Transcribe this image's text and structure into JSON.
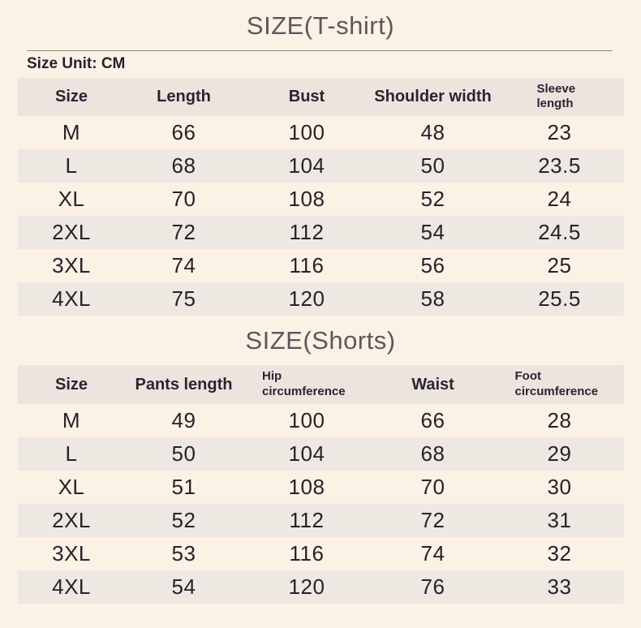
{
  "theme": {
    "background": "#fcf1e5",
    "stripe_row": "#ede8e1",
    "header_row": "#ece5dd",
    "title_color": "#5b585c",
    "text_color": "#272229",
    "rule_color": "#95897e"
  },
  "tshirt": {
    "title": "SIZE(T-shirt)",
    "unit_label": "Size Unit: CM",
    "columns": [
      "Size",
      "Length",
      "Bust",
      "Shoulder width",
      "Sleeve length"
    ],
    "rows": [
      [
        "M",
        "66",
        "100",
        "48",
        "23"
      ],
      [
        "L",
        "68",
        "104",
        "50",
        "23.5"
      ],
      [
        "XL",
        "70",
        "108",
        "52",
        "24"
      ],
      [
        "2XL",
        "72",
        "112",
        "54",
        "24.5"
      ],
      [
        "3XL",
        "74",
        "116",
        "56",
        "25"
      ],
      [
        "4XL",
        "75",
        "120",
        "58",
        "25.5"
      ]
    ]
  },
  "shorts": {
    "title": "SIZE(Shorts)",
    "columns": [
      "Size",
      "Pants length",
      "Hip circumference",
      "Waist",
      "Foot circumference"
    ],
    "rows": [
      [
        "M",
        "49",
        "100",
        "66",
        "28"
      ],
      [
        "L",
        "50",
        "104",
        "68",
        "29"
      ],
      [
        "XL",
        "51",
        "108",
        "70",
        "30"
      ],
      [
        "2XL",
        "52",
        "112",
        "72",
        "31"
      ],
      [
        "3XL",
        "53",
        "116",
        "74",
        "32"
      ],
      [
        "4XL",
        "54",
        "120",
        "76",
        "33"
      ]
    ]
  }
}
